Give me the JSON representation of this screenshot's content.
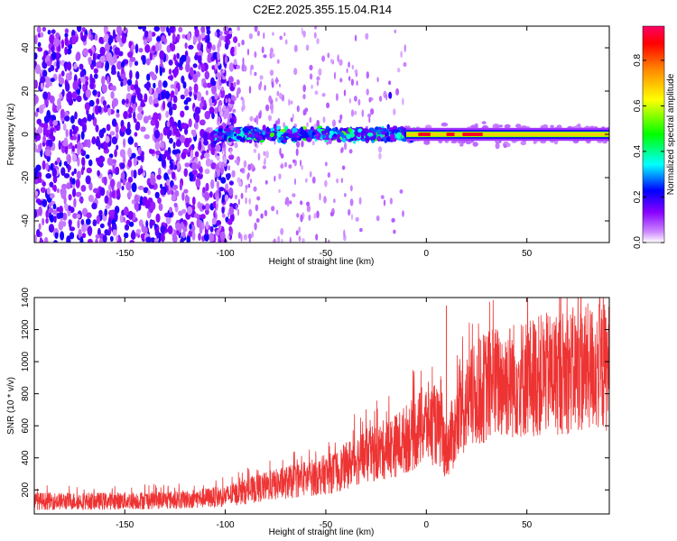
{
  "figure_title": "C2E2.2025.355.15.04.R14",
  "chart_data": [
    {
      "type": "heatmap",
      "title": "C2E2.2025.355.15.04.R14",
      "xlabel": "Height of straight line (km)",
      "ylabel": "Frequency (Hz)",
      "xlim": [
        -195,
        91
      ],
      "ylim": [
        -50,
        50
      ],
      "xticks": [
        -150,
        -100,
        -50,
        0,
        50
      ],
      "yticks": [
        -40,
        -20,
        0,
        20,
        40
      ],
      "colorbar": {
        "label": "Normalized spectral amplitude",
        "range": [
          0,
          0.95
        ],
        "ticks": [
          0.0,
          0.2,
          0.4,
          0.6,
          0.8
        ],
        "tick_labels": [
          "0.0",
          "0.2",
          "0.4",
          "0.6",
          "0.8"
        ],
        "colormap": [
          "#ffffff",
          "#8800ff",
          "#0000ff",
          "#00ffff",
          "#00ff00",
          "#ffff00",
          "#ff8800",
          "#ff0000",
          "#ff0066"
        ]
      },
      "features": {
        "noise_region_x": [
          -195,
          -105
        ],
        "scattered_region_x": [
          -105,
          -10
        ],
        "band_start_x": -107,
        "band_center_hz": 0,
        "band_halfwidth_hz": 4,
        "strong_line_x": [
          -10,
          91
        ],
        "strong_line_amplitude": 0.9
      }
    },
    {
      "type": "line",
      "xlabel": "Height of straight line (km)",
      "ylabel": "SNR (10 * v/v)",
      "xlim": [
        -195,
        91
      ],
      "ylim": [
        50,
        1400
      ],
      "xticks": [
        -150,
        -100,
        -50,
        0,
        50
      ],
      "yticks": [
        200,
        400,
        600,
        800,
        1000,
        1200,
        1400
      ],
      "series": [
        {
          "name": "SNR",
          "color": "#ee3333",
          "trend": {
            "x": [
              -195,
              -160,
              -120,
              -100,
              -80,
              -60,
              -45,
              -35,
              -25,
              -15,
              -5,
              0,
              5,
              8,
              10,
              12,
              15,
              20,
              30,
              40,
              60,
              80,
              91
            ],
            "y": [
              130,
              130,
              140,
              160,
              220,
              270,
              310,
              390,
              430,
              480,
              560,
              620,
              600,
              520,
              450,
              520,
              600,
              740,
              850,
              880,
              920,
              960,
              970
            ]
          },
          "peaks": [
            {
              "x": 10,
              "y": 1350
            },
            {
              "x": 88,
              "y": 1400
            },
            {
              "x": 33,
              "y": 1200
            }
          ]
        }
      ]
    }
  ]
}
